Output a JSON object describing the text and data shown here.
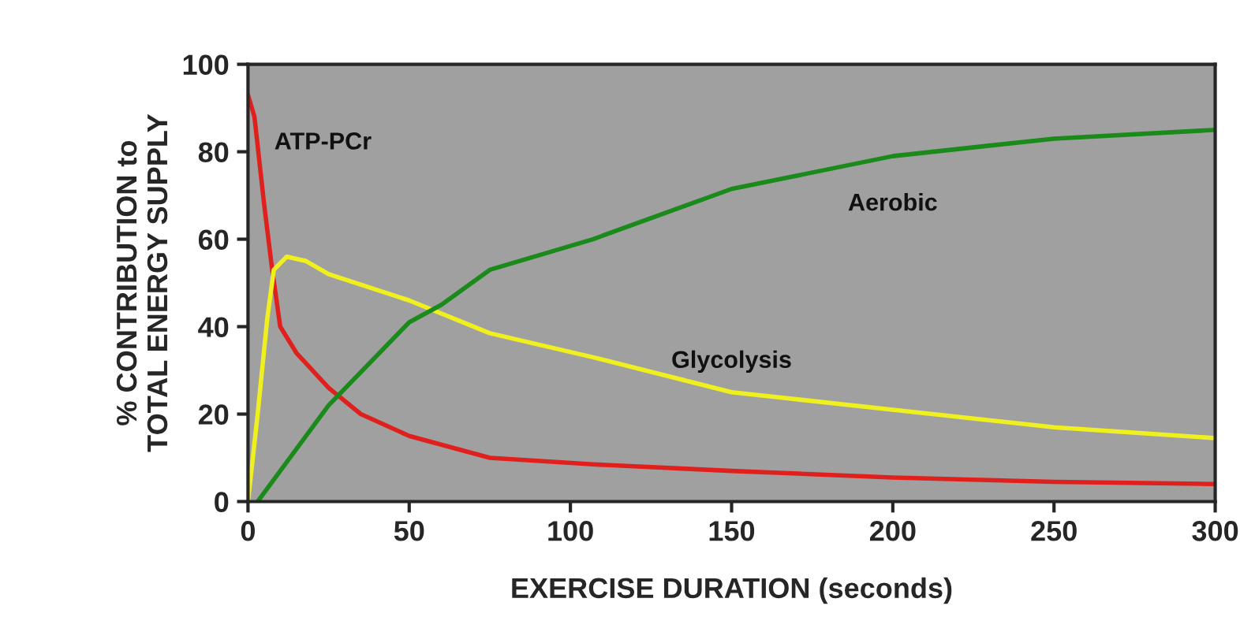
{
  "chart_data": {
    "type": "line",
    "xlabel": "EXERCISE DURATION (seconds)",
    "ylabel": "% CONTRIBUTION to\nTOTAL ENERGY SUPPLY",
    "xlim": [
      0,
      300
    ],
    "ylim": [
      0,
      100
    ],
    "xticks": [
      0,
      50,
      100,
      150,
      200,
      250,
      300
    ],
    "yticks": [
      0,
      20,
      40,
      60,
      80,
      100
    ],
    "grid": false,
    "legend": false,
    "marker": "none",
    "line_style": "solid",
    "series": [
      {
        "name": "ATP-PCr",
        "color": "#e0201c",
        "x": [
          0,
          2,
          5,
          7.5,
          10,
          15,
          25,
          35,
          50,
          75,
          107,
          150,
          200,
          250,
          300
        ],
        "values": [
          93,
          88,
          68,
          53,
          40,
          34,
          26,
          20,
          15,
          10,
          8.5,
          7,
          5.5,
          4.5,
          4
        ]
      },
      {
        "name": "Glycolysis",
        "color": "#f0f020",
        "x": [
          0,
          3,
          6,
          8,
          12,
          18,
          25,
          50,
          75,
          107,
          150,
          200,
          250,
          300
        ],
        "values": [
          0,
          20,
          42,
          53,
          56,
          55,
          52,
          46,
          38.5,
          33,
          25,
          21,
          17,
          14.5
        ]
      },
      {
        "name": "Aerobic",
        "color": "#1a8a1a",
        "x": [
          3,
          10,
          25,
          50,
          60,
          75,
          107,
          150,
          200,
          250,
          300
        ],
        "values": [
          0,
          7,
          22,
          41,
          45,
          53,
          60,
          71.5,
          79,
          83,
          85
        ]
      }
    ]
  }
}
